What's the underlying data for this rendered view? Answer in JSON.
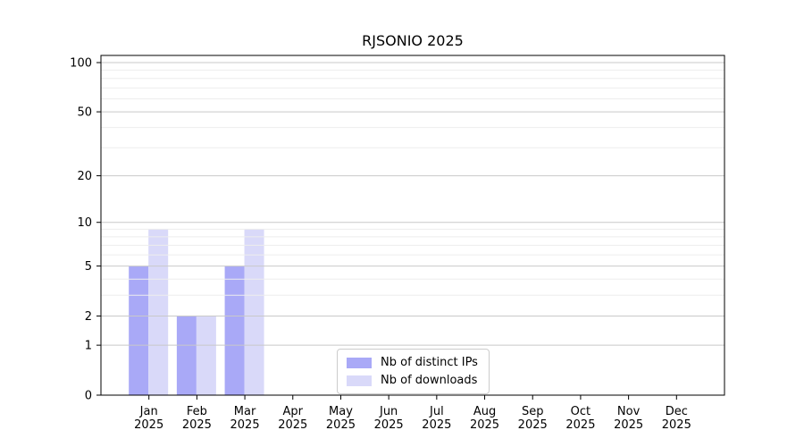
{
  "chart_data": {
    "type": "bar",
    "title": "RJSONIO 2025",
    "categories": [
      "Jan",
      "Feb",
      "Mar",
      "Apr",
      "May",
      "Jun",
      "Jul",
      "Aug",
      "Sep",
      "Oct",
      "Nov",
      "Dec"
    ],
    "x_tick_year": "2025",
    "series": [
      {
        "name": "Nb of distinct IPs",
        "color": "#a9a9f7",
        "values": [
          5,
          2,
          5,
          0,
          0,
          0,
          0,
          0,
          0,
          0,
          0,
          0
        ]
      },
      {
        "name": "Nb of downloads",
        "color": "#d9d9f9",
        "values": [
          9,
          2,
          9,
          0,
          0,
          0,
          0,
          0,
          0,
          0,
          0,
          0
        ]
      }
    ],
    "yticks": [
      0,
      1,
      2,
      5,
      10,
      20,
      50,
      100
    ],
    "minor_yticks": [
      3,
      4,
      6,
      7,
      8,
      9,
      30,
      40,
      60,
      70,
      80,
      90
    ],
    "ylim": [
      0,
      100
    ],
    "scale": "log1p",
    "grid": true,
    "legend_position": "bottom-center",
    "colors": {
      "axis": "#000000",
      "major_grid": "#c9c9c9",
      "minor_grid": "#ededed",
      "tick_label": "#000000",
      "background": "#ffffff"
    }
  }
}
